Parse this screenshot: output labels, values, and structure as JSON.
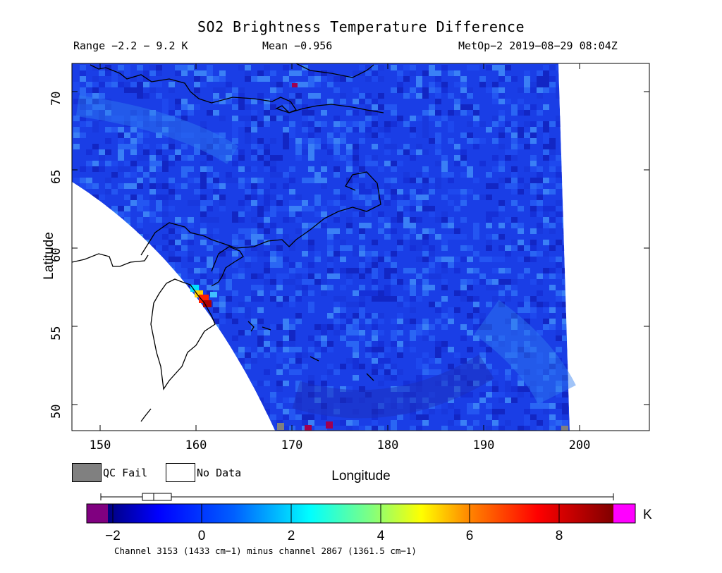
{
  "title": "SO2 Brightness Temperature Difference",
  "range_text": "Range −2.2 − 9.2 K",
  "mean_text": "Mean −0.956",
  "sat_text": "MetOp−2 2019−08−29 08:04Z",
  "xlabel": "Longitude",
  "ylabel": "Latitude",
  "x_ticks": [
    "150",
    "160",
    "170",
    "180",
    "190",
    "200"
  ],
  "y_ticks": [
    "70",
    "65",
    "60",
    "55",
    "50"
  ],
  "legend": {
    "qc_fail": "QC Fail",
    "no_data": "No Data",
    "qc_color": "#808080"
  },
  "colorbar": {
    "ticks": [
      "−2",
      "0",
      "2",
      "4",
      "6",
      "8"
    ],
    "unit": "K",
    "under_color": "#800080",
    "over_color": "#ff00ff",
    "colors": [
      "#000080",
      "#0000ff",
      "#0080ff",
      "#00ffff",
      "#80ff80",
      "#ffff00",
      "#ff8000",
      "#ff0000",
      "#800000"
    ],
    "range": [
      -2.2,
      9.2
    ]
  },
  "footnote": "Channel 3153 (1433 cm−1) minus channel 2867 (1361.5 cm−1)",
  "map": {
    "lon_range": [
      147,
      207
    ],
    "lat_range": [
      48.5,
      72
    ],
    "background_color": "#1a3ee6",
    "hotspot_values": [
      9.2,
      8.5,
      6.0,
      3.0,
      2.0
    ]
  }
}
